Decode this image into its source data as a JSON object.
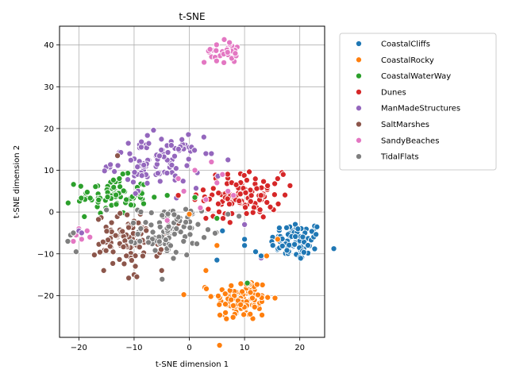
{
  "chart_data": {
    "type": "scatter",
    "title": "t-SNE",
    "xlabel": "t-SNE dimension 1",
    "ylabel": "t-SNE dimension 2",
    "xlim": [
      -23.5,
      24.5
    ],
    "ylim": [
      -30,
      44.5
    ],
    "xticks": [
      -20,
      -10,
      0,
      10,
      20
    ],
    "yticks": [
      -20,
      -10,
      0,
      10,
      20,
      30,
      40
    ],
    "grid": true,
    "legend_position": "outside-right",
    "series": [
      {
        "name": "CoastalCliffs",
        "color": "#1f77b4",
        "cluster": {
          "cx": 19.5,
          "cy": -7,
          "sx": 2.4,
          "sy": 2.4,
          "n": 80
        }
      },
      {
        "name": "CoastalRocky",
        "color": "#ff7f0e",
        "cluster": {
          "cx": 9.5,
          "cy": -21,
          "sx": 2.6,
          "sy": 2.6,
          "n": 110
        }
      },
      {
        "name": "CoastalWaterWay",
        "color": "#2ca02c",
        "cluster": {
          "cx": -14,
          "cy": 4,
          "sx": 3.2,
          "sy": 2.2,
          "n": 80
        }
      },
      {
        "name": "Dunes",
        "color": "#d62728",
        "cluster": {
          "cx": 10,
          "cy": 4,
          "sx": 3.5,
          "sy": 2.8,
          "n": 100
        }
      },
      {
        "name": "ManMadeStructures",
        "color": "#9467bd",
        "cluster": {
          "cx": -6,
          "cy": 12,
          "sx": 4.0,
          "sy": 3.0,
          "n": 100
        }
      },
      {
        "name": "SaltMarshes",
        "color": "#8c564b",
        "cluster": {
          "cx": -11,
          "cy": -7,
          "sx": 3.0,
          "sy": 3.2,
          "n": 90
        }
      },
      {
        "name": "SandyBeaches",
        "color": "#e377c2",
        "cluster": {
          "cx": 6,
          "cy": 38.5,
          "sx": 1.6,
          "sy": 1.4,
          "n": 35
        }
      },
      {
        "name": "TidalFlats",
        "color": "#7f7f7f",
        "cluster": {
          "cx": -3.5,
          "cy": -4.5,
          "sx": 2.8,
          "sy": 3.0,
          "n": 90
        }
      }
    ],
    "extra_points": [
      {
        "series": "SandyBeaches",
        "x": [
          -20.5,
          -19.5,
          -18.5,
          -21,
          -20,
          -18,
          -2,
          1,
          4,
          7,
          3,
          5,
          -4,
          2,
          6,
          -1,
          8
        ],
        "y": [
          -5.5,
          -6.5,
          -4.5,
          -7,
          -4,
          -6,
          8,
          10,
          12,
          5,
          3,
          7,
          -2,
          1,
          9,
          5,
          4
        ]
      },
      {
        "series": "TidalFlats",
        "x": [
          -21.5,
          -22,
          -20.5,
          -21,
          -15,
          7,
          9
        ],
        "y": [
          -5.5,
          -7,
          -9.5,
          -5,
          0.5,
          -0.5,
          -1
        ]
      },
      {
        "series": "ManMadeStructures",
        "x": [
          -20,
          -19.5,
          3,
          4,
          7,
          10,
          13
        ],
        "y": [
          -4.5,
          -5,
          14,
          14,
          12.5,
          -3,
          -11
        ]
      },
      {
        "series": "CoastalCliffs",
        "x": [
          5,
          6,
          10,
          10,
          12,
          13
        ],
        "y": [
          -11.5,
          -4.5,
          -6.5,
          -8,
          -9.5,
          -10.5
        ]
      },
      {
        "series": "CoastalRocky",
        "x": [
          3,
          0,
          5,
          14,
          16
        ],
        "y": [
          -14,
          -0.5,
          -8,
          -10.5,
          -6.5
        ]
      },
      {
        "series": "Dunes",
        "x": [
          -2,
          1,
          3,
          16,
          17
        ],
        "y": [
          4,
          3,
          -1.5,
          8,
          9
        ]
      },
      {
        "series": "CoastalWaterWay",
        "x": [
          -4,
          1,
          5,
          10.5
        ],
        "y": [
          4,
          3.5,
          -1.5,
          -17
        ]
      },
      {
        "series": "SaltMarshes",
        "x": [
          -13,
          -10,
          -5,
          -15.5,
          -9.5
        ],
        "y": [
          13.5,
          -15,
          -14,
          -14,
          -15.5
        ]
      }
    ]
  }
}
